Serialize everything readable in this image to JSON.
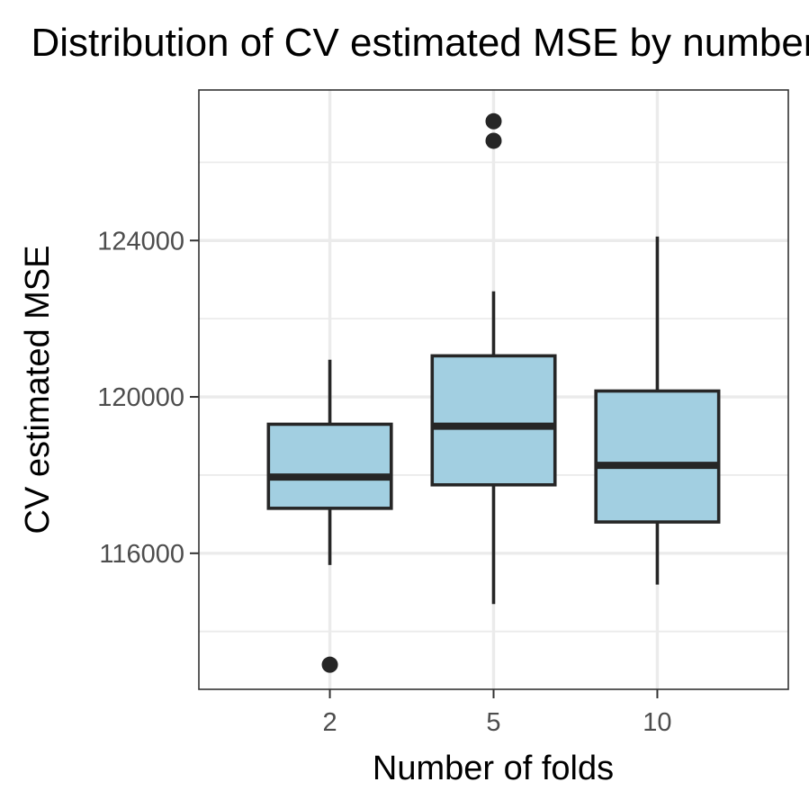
{
  "chart_data": {
    "type": "boxplot",
    "title": "Distribution of CV estimated MSE by number of folds",
    "xlabel": "Number of folds",
    "ylabel": "CV estimated MSE",
    "categories": [
      "2",
      "5",
      "10"
    ],
    "boxes": [
      {
        "category": "2",
        "whisker_low": 115700,
        "q1": 117150,
        "median": 117950,
        "q3": 119300,
        "whisker_high": 120950,
        "outliers": [
          113150
        ]
      },
      {
        "category": "5",
        "whisker_low": 114700,
        "q1": 117750,
        "median": 119250,
        "q3": 121050,
        "whisker_high": 122700,
        "outliers": [
          126550,
          127050
        ]
      },
      {
        "category": "10",
        "whisker_low": 115200,
        "q1": 116800,
        "median": 118250,
        "q3": 120150,
        "whisker_high": 124100,
        "outliers": []
      }
    ],
    "ylim": [
      112520,
      127850
    ],
    "y_ticks": [
      "116000",
      "120000",
      "124000"
    ],
    "grid": true,
    "legend": "none",
    "colors": {
      "box_fill": "#a2cfe1",
      "box_stroke": "#262626",
      "grid": "#ebebeb",
      "panel_border": "#333333"
    }
  }
}
